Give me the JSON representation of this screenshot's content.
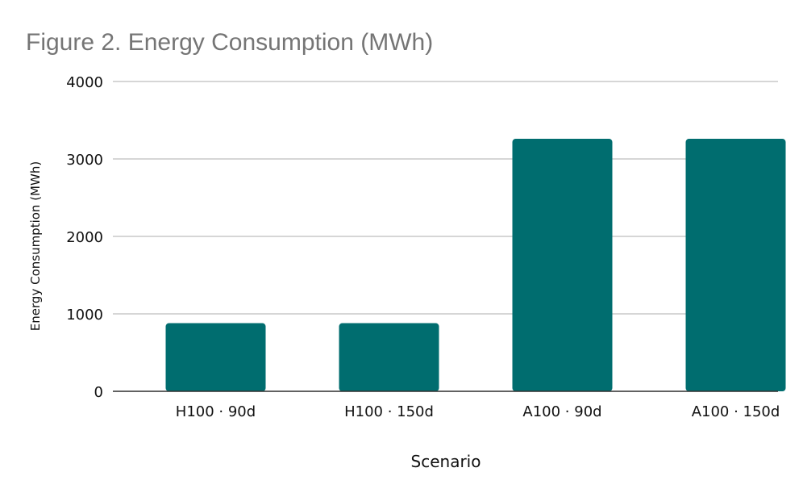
{
  "chart_data": {
    "type": "bar",
    "title": "Figure 2. Energy Consumption (MWh)",
    "xlabel": "Scenario",
    "ylabel": "Energy Consumption (MWh)",
    "categories": [
      "H100 · 90d",
      "H100 · 150d",
      "A100 · 90d",
      "A100 · 150d"
    ],
    "values": [
      880,
      880,
      3260,
      3260
    ],
    "ylim": [
      0,
      4000
    ],
    "yticks": [
      "0",
      "1000",
      "2000",
      "3000",
      "4000"
    ],
    "bar_color": "#006D6F",
    "grid": true
  }
}
